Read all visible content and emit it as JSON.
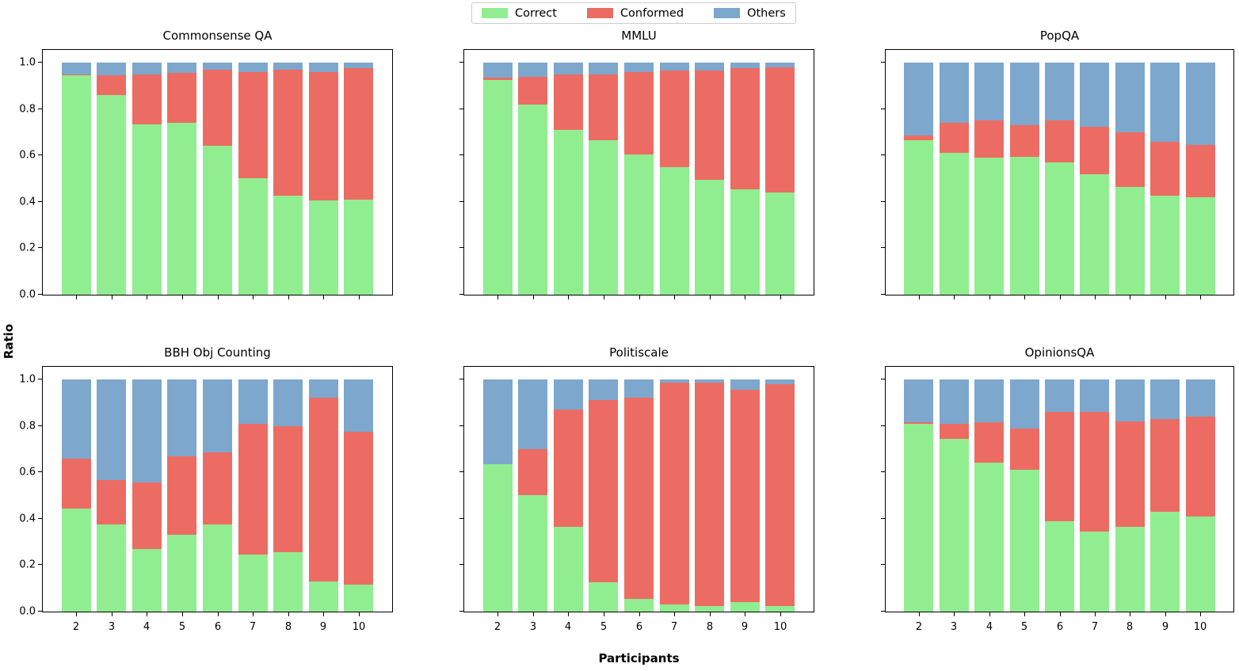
{
  "ylabel": "Ratio",
  "xlabel": "Participants",
  "yticks": [
    "0.0",
    "0.2",
    "0.4",
    "0.6",
    "0.8",
    "1.0"
  ],
  "legend": {
    "items": [
      {
        "label": "Correct",
        "color": "#90EE90"
      },
      {
        "label": "Conformed",
        "color": "#EC6C63"
      },
      {
        "label": "Others",
        "color": "#7DA7CD"
      }
    ]
  },
  "colors": {
    "correct": "#90EE90",
    "conformed": "#EC6C63",
    "others": "#7DA7CD"
  },
  "chart_data": [
    {
      "type": "bar",
      "stacked": true,
      "title": "Commonsense QA",
      "categories": [
        2,
        3,
        4,
        5,
        6,
        7,
        8,
        9,
        10
      ],
      "ylim": [
        0,
        1.05
      ],
      "grid": false,
      "series": [
        {
          "name": "Correct",
          "color": "#90EE90",
          "values": [
            0.945,
            0.86,
            0.735,
            0.74,
            0.64,
            0.5,
            0.425,
            0.405,
            0.41
          ]
        },
        {
          "name": "Conformed",
          "color": "#EC6C63",
          "values": [
            0.005,
            0.085,
            0.215,
            0.215,
            0.33,
            0.46,
            0.545,
            0.555,
            0.565
          ]
        },
        {
          "name": "Others",
          "color": "#7DA7CD",
          "values": [
            0.05,
            0.055,
            0.05,
            0.045,
            0.03,
            0.04,
            0.03,
            0.04,
            0.025
          ]
        }
      ]
    },
    {
      "type": "bar",
      "stacked": true,
      "title": "MMLU",
      "categories": [
        2,
        3,
        4,
        5,
        6,
        7,
        8,
        9,
        10
      ],
      "ylim": [
        0,
        1.05
      ],
      "grid": false,
      "series": [
        {
          "name": "Correct",
          "color": "#90EE90",
          "values": [
            0.925,
            0.82,
            0.71,
            0.665,
            0.605,
            0.55,
            0.495,
            0.455,
            0.44
          ]
        },
        {
          "name": "Conformed",
          "color": "#EC6C63",
          "values": [
            0.01,
            0.12,
            0.24,
            0.285,
            0.355,
            0.415,
            0.47,
            0.52,
            0.54
          ]
        },
        {
          "name": "Others",
          "color": "#7DA7CD",
          "values": [
            0.065,
            0.06,
            0.05,
            0.05,
            0.04,
            0.035,
            0.035,
            0.025,
            0.02
          ]
        }
      ]
    },
    {
      "type": "bar",
      "stacked": true,
      "title": "PopQA",
      "categories": [
        2,
        3,
        4,
        5,
        6,
        7,
        8,
        9,
        10
      ],
      "ylim": [
        0,
        1.05
      ],
      "grid": false,
      "series": [
        {
          "name": "Correct",
          "color": "#90EE90",
          "values": [
            0.665,
            0.61,
            0.59,
            0.595,
            0.57,
            0.52,
            0.465,
            0.425,
            0.42
          ]
        },
        {
          "name": "Conformed",
          "color": "#EC6C63",
          "values": [
            0.02,
            0.13,
            0.16,
            0.135,
            0.18,
            0.205,
            0.235,
            0.235,
            0.225
          ]
        },
        {
          "name": "Others",
          "color": "#7DA7CD",
          "values": [
            0.315,
            0.26,
            0.25,
            0.27,
            0.25,
            0.275,
            0.3,
            0.34,
            0.355
          ]
        }
      ]
    },
    {
      "type": "bar",
      "stacked": true,
      "title": "BBH Obj Counting",
      "categories": [
        2,
        3,
        4,
        5,
        6,
        7,
        8,
        9,
        10
      ],
      "ylim": [
        0,
        1.05
      ],
      "grid": false,
      "series": [
        {
          "name": "Correct",
          "color": "#90EE90",
          "values": [
            0.445,
            0.375,
            0.27,
            0.33,
            0.375,
            0.245,
            0.255,
            0.13,
            0.115
          ]
        },
        {
          "name": "Conformed",
          "color": "#EC6C63",
          "values": [
            0.215,
            0.19,
            0.285,
            0.34,
            0.31,
            0.565,
            0.545,
            0.79,
            0.66
          ]
        },
        {
          "name": "Others",
          "color": "#7DA7CD",
          "values": [
            0.34,
            0.435,
            0.445,
            0.33,
            0.315,
            0.19,
            0.2,
            0.08,
            0.225
          ]
        }
      ]
    },
    {
      "type": "bar",
      "stacked": true,
      "title": "Politiscale",
      "categories": [
        2,
        3,
        4,
        5,
        6,
        7,
        8,
        9,
        10
      ],
      "ylim": [
        0,
        1.05
      ],
      "grid": false,
      "series": [
        {
          "name": "Correct",
          "color": "#90EE90",
          "values": [
            0.635,
            0.5,
            0.365,
            0.125,
            0.055,
            0.03,
            0.025,
            0.04,
            0.025
          ]
        },
        {
          "name": "Conformed",
          "color": "#EC6C63",
          "values": [
            0.0,
            0.2,
            0.505,
            0.785,
            0.865,
            0.955,
            0.96,
            0.915,
            0.955
          ]
        },
        {
          "name": "Others",
          "color": "#7DA7CD",
          "values": [
            0.365,
            0.3,
            0.13,
            0.09,
            0.08,
            0.015,
            0.015,
            0.045,
            0.02
          ]
        }
      ]
    },
    {
      "type": "bar",
      "stacked": true,
      "title": "OpinionsQA",
      "categories": [
        2,
        3,
        4,
        5,
        6,
        7,
        8,
        9,
        10
      ],
      "ylim": [
        0,
        1.05
      ],
      "grid": false,
      "series": [
        {
          "name": "Correct",
          "color": "#90EE90",
          "values": [
            0.81,
            0.745,
            0.64,
            0.61,
            0.39,
            0.345,
            0.365,
            0.43,
            0.41
          ]
        },
        {
          "name": "Conformed",
          "color": "#EC6C63",
          "values": [
            0.005,
            0.065,
            0.175,
            0.18,
            0.47,
            0.515,
            0.455,
            0.4,
            0.43
          ]
        },
        {
          "name": "Others",
          "color": "#7DA7CD",
          "values": [
            0.185,
            0.19,
            0.185,
            0.21,
            0.14,
            0.14,
            0.18,
            0.17,
            0.16
          ]
        }
      ]
    }
  ]
}
